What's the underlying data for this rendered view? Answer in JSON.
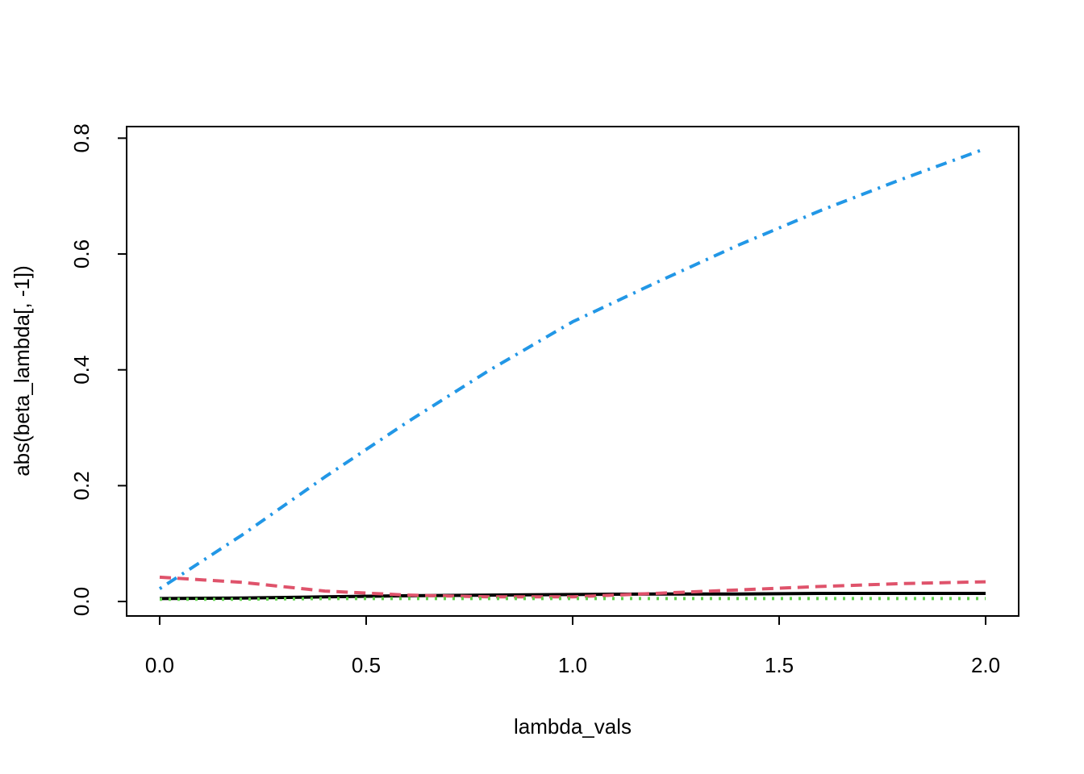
{
  "chart_data": {
    "type": "line",
    "title": "",
    "xlabel": "lambda_vals",
    "ylabel": "abs(beta_lambda[, -1])",
    "xlim": [
      -0.08,
      2.08
    ],
    "ylim": [
      -0.025,
      0.82
    ],
    "x_ticks": [
      "0.0",
      "0.5",
      "1.0",
      "1.5",
      "2.0"
    ],
    "x_tick_values": [
      0,
      0.5,
      1,
      1.5,
      2
    ],
    "y_ticks": [
      "0.0",
      "0.2",
      "0.4",
      "0.6",
      "0.8"
    ],
    "y_tick_values": [
      0,
      0.2,
      0.4,
      0.6,
      0.8
    ],
    "grid": false,
    "legend": "none",
    "x": [
      0,
      0.2,
      0.4,
      0.6,
      0.8,
      1.0,
      1.2,
      1.4,
      1.6,
      1.8,
      2.0
    ],
    "series": [
      {
        "color": "#000000",
        "dash": "solid",
        "values": [
          0.005,
          0.006,
          0.008,
          0.01,
          0.011,
          0.012,
          0.013,
          0.013,
          0.014,
          0.014,
          0.014
        ]
      },
      {
        "color": "#DF536B",
        "dash": "dashed",
        "values": [
          0.042,
          0.033,
          0.018,
          0.011,
          0.008,
          0.008,
          0.014,
          0.02,
          0.026,
          0.031,
          0.034
        ]
      },
      {
        "color": "#61D04F",
        "dash": "dotted",
        "values": [
          0.004,
          0.004,
          0.005,
          0.005,
          0.005,
          0.005,
          0.005,
          0.005,
          0.005,
          0.005,
          0.005
        ]
      },
      {
        "color": "#2297E6",
        "dash": "dotdash",
        "values": [
          0.022,
          0.115,
          0.215,
          0.31,
          0.4,
          0.483,
          0.55,
          0.615,
          0.675,
          0.73,
          0.782
        ]
      }
    ]
  }
}
